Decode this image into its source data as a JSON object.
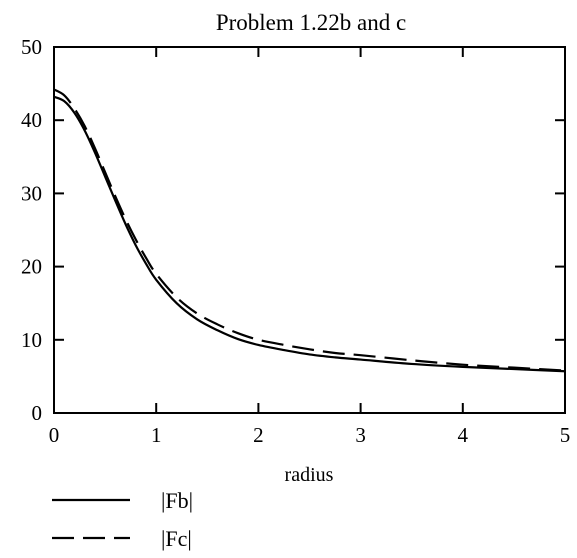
{
  "chart_data": {
    "type": "line",
    "title": "Problem 1.22b and c",
    "xlabel": "radius",
    "ylabel": "",
    "xlim": [
      0,
      5
    ],
    "ylim": [
      0,
      50
    ],
    "xticks": [
      0,
      1,
      2,
      3,
      4,
      5
    ],
    "yticks": [
      0,
      10,
      20,
      30,
      40,
      50
    ],
    "grid": false,
    "legend_position": "below",
    "series": [
      {
        "name": "|Fb|",
        "line_style": "solid",
        "color": "#000000",
        "x": [
          0,
          0.1,
          0.2,
          0.3,
          0.4,
          0.5,
          0.6,
          0.7,
          0.8,
          0.9,
          1.0,
          1.2,
          1.4,
          1.6,
          1.8,
          2.0,
          2.25,
          2.5,
          2.75,
          3.0,
          3.5,
          4.0,
          4.5,
          5.0
        ],
        "y": [
          43.2,
          42.6,
          41.0,
          38.6,
          35.6,
          32.3,
          29.0,
          25.8,
          22.9,
          20.4,
          18.2,
          15.0,
          12.8,
          11.3,
          10.1,
          9.3,
          8.6,
          8.0,
          7.6,
          7.3,
          6.7,
          6.3,
          6.0,
          5.7
        ]
      },
      {
        "name": "|Fc|",
        "line_style": "dashed",
        "color": "#000000",
        "x": [
          0,
          0.1,
          0.2,
          0.3,
          0.4,
          0.5,
          0.6,
          0.7,
          0.8,
          0.9,
          1.0,
          1.2,
          1.4,
          1.6,
          1.8,
          2.0,
          2.25,
          2.5,
          2.75,
          3.0,
          3.5,
          4.0,
          4.5,
          5.0
        ],
        "y": [
          44.2,
          43.4,
          41.6,
          39.2,
          36.2,
          32.9,
          29.6,
          26.5,
          23.7,
          21.2,
          19.0,
          15.8,
          13.6,
          12.1,
          10.9,
          10.0,
          9.3,
          8.7,
          8.2,
          7.9,
          7.2,
          6.6,
          6.2,
          5.8
        ]
      }
    ]
  }
}
